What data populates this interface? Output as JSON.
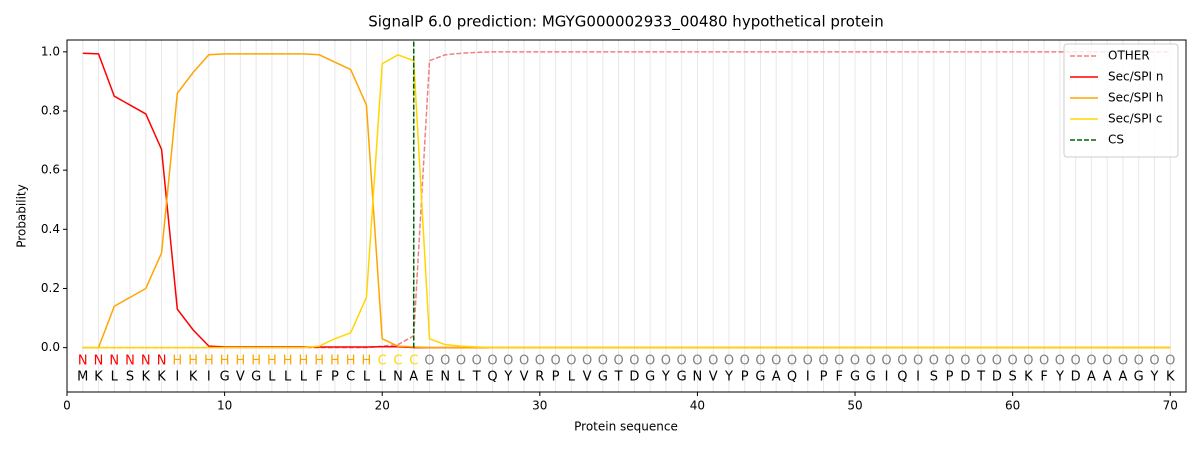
{
  "chart_data": {
    "type": "line",
    "title": "SignalP 6.0 prediction: MGYG000002933_00480 hypothetical protein",
    "xlabel": "Protein sequence",
    "ylabel": "Probability",
    "xlim": [
      0,
      71
    ],
    "ylim": [
      -0.15,
      1.04
    ],
    "xticks": [
      0,
      10,
      20,
      30,
      40,
      50,
      60,
      70
    ],
    "yticks": [
      {
        "value": 0,
        "label": "0.0"
      },
      {
        "value": 0.2,
        "label": "0.2"
      },
      {
        "value": 0.4,
        "label": "0.4"
      },
      {
        "value": 0.6,
        "label": "0.6"
      },
      {
        "value": 0.8,
        "label": "0.8"
      },
      {
        "value": 1.0,
        "label": "1.0"
      }
    ],
    "legend": "upper right",
    "x": [
      1,
      2,
      3,
      4,
      5,
      6,
      7,
      8,
      9,
      10,
      11,
      12,
      13,
      14,
      15,
      16,
      17,
      18,
      19,
      20,
      21,
      22,
      23,
      24,
      25,
      26,
      27,
      28,
      29,
      30,
      31,
      32,
      33,
      34,
      35,
      36,
      37,
      38,
      39,
      40,
      41,
      42,
      43,
      44,
      45,
      46,
      47,
      48,
      49,
      50,
      51,
      52,
      53,
      54,
      55,
      56,
      57,
      58,
      59,
      60,
      61,
      62,
      63,
      64,
      65,
      66,
      67,
      68,
      69,
      70
    ],
    "sequence": [
      "M",
      "K",
      "L",
      "S",
      "K",
      "K",
      "I",
      "K",
      "I",
      "G",
      "V",
      "G",
      "L",
      "L",
      "L",
      "F",
      "P",
      "C",
      "L",
      "L",
      "N",
      "A",
      "E",
      "N",
      "L",
      "T",
      "Q",
      "Y",
      "V",
      "R",
      "P",
      "L",
      "V",
      "G",
      "T",
      "D",
      "G",
      "Y",
      "G",
      "N",
      "V",
      "Y",
      "P",
      "G",
      "A",
      "Q",
      "I",
      "P",
      "F",
      "G",
      "G",
      "I",
      "Q",
      "I",
      "S",
      "P",
      "D",
      "T",
      "D",
      "S",
      "K",
      "F",
      "Y",
      "D",
      "A",
      "A",
      "A",
      "G",
      "Y",
      "K"
    ],
    "regions": [
      "N",
      "N",
      "N",
      "N",
      "N",
      "N",
      "H",
      "H",
      "H",
      "H",
      "H",
      "H",
      "H",
      "H",
      "H",
      "H",
      "H",
      "H",
      "H",
      "C",
      "C",
      "C",
      "O",
      "O",
      "O",
      "O",
      "O",
      "O",
      "O",
      "O",
      "O",
      "O",
      "O",
      "O",
      "O",
      "O",
      "O",
      "O",
      "O",
      "O",
      "O",
      "O",
      "O",
      "O",
      "O",
      "O",
      "O",
      "O",
      "O",
      "O",
      "O",
      "O",
      "O",
      "O",
      "O",
      "O",
      "O",
      "O",
      "O",
      "O",
      "O",
      "O",
      "O",
      "O",
      "O",
      "O",
      "O",
      "O",
      "O",
      "O"
    ],
    "region_colors": {
      "N": "#ff0000",
      "H": "#ffa500",
      "C": "#ffd700",
      "O": "#808080"
    },
    "series": [
      {
        "name": "OTHER",
        "color": "#f08080",
        "dashed": true,
        "values": [
          0,
          0,
          0,
          0,
          0,
          0,
          0,
          0,
          0,
          0,
          0,
          0,
          0,
          0,
          0,
          0,
          0,
          0,
          0,
          0.005,
          0.01,
          0.04,
          0.97,
          0.99,
          0.995,
          0.998,
          1,
          1,
          1,
          1,
          1,
          1,
          1,
          1,
          1,
          1,
          1,
          1,
          1,
          1,
          1,
          1,
          1,
          1,
          1,
          1,
          1,
          1,
          1,
          1,
          1,
          1,
          1,
          1,
          1,
          1,
          1,
          1,
          1,
          1,
          1,
          1,
          1,
          1,
          1,
          1,
          1,
          1,
          1,
          1
        ]
      },
      {
        "name": "Sec/SPI n",
        "color": "#ff0000",
        "values": [
          0.995,
          0.993,
          0.85,
          0.82,
          0.79,
          0.67,
          0.13,
          0.06,
          0.005,
          0.002,
          0.002,
          0.002,
          0.002,
          0.002,
          0.002,
          0.002,
          0.002,
          0.002,
          0.002,
          0.003,
          0.003,
          0,
          0,
          0,
          0,
          0,
          0,
          0,
          0,
          0,
          0,
          0,
          0,
          0,
          0,
          0,
          0,
          0,
          0,
          0,
          0,
          0,
          0,
          0,
          0,
          0,
          0,
          0,
          0,
          0,
          0,
          0,
          0,
          0,
          0,
          0,
          0,
          0,
          0,
          0,
          0,
          0,
          0,
          0,
          0,
          0,
          0,
          0,
          0,
          0
        ]
      },
      {
        "name": "Sec/SPI h",
        "color": "#ffa500",
        "values": [
          0,
          0,
          0.14,
          0.17,
          0.2,
          0.32,
          0.86,
          0.93,
          0.99,
          0.993,
          0.993,
          0.993,
          0.993,
          0.993,
          0.993,
          0.99,
          0.965,
          0.94,
          0.82,
          0.03,
          0.005,
          0.002,
          0,
          0,
          0,
          0,
          0,
          0,
          0,
          0,
          0,
          0,
          0,
          0,
          0,
          0,
          0,
          0,
          0,
          0,
          0,
          0,
          0,
          0,
          0,
          0,
          0,
          0,
          0,
          0,
          0,
          0,
          0,
          0,
          0,
          0,
          0,
          0,
          0,
          0,
          0,
          0,
          0,
          0,
          0,
          0,
          0,
          0,
          0,
          0
        ]
      },
      {
        "name": "Sec/SPI c",
        "color": "#ffd700",
        "values": [
          0,
          0,
          0,
          0,
          0,
          0,
          0,
          0,
          0,
          0,
          0,
          0,
          0,
          0,
          0,
          0.005,
          0.03,
          0.05,
          0.17,
          0.96,
          0.99,
          0.97,
          0.03,
          0.01,
          0.005,
          0.002,
          0,
          0,
          0,
          0,
          0,
          0,
          0,
          0,
          0,
          0,
          0,
          0,
          0,
          0,
          0,
          0,
          0,
          0,
          0,
          0,
          0,
          0,
          0,
          0,
          0,
          0,
          0,
          0,
          0,
          0,
          0,
          0,
          0,
          0,
          0,
          0,
          0,
          0,
          0,
          0,
          0,
          0,
          0,
          0
        ]
      }
    ],
    "cs": {
      "name": "CS",
      "color": "#006400",
      "x": 22
    }
  }
}
